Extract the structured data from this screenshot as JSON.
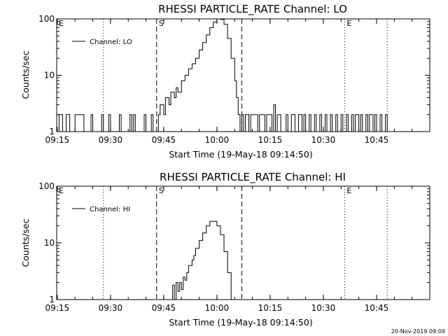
{
  "chart_data": [
    {
      "type": "line",
      "title": "RHESSI PARTICLE_RATE Channel: LO",
      "xlabel": "Start Time (19-May-18 09:14:50)",
      "ylabel": "Counts/sec",
      "y_scale": "log",
      "ylim": [
        1,
        100
      ],
      "y_ticks": [
        "1",
        "10",
        "100"
      ],
      "xlim": [
        "09:14:50",
        "11:00:00"
      ],
      "x_ticks": [
        "09:15",
        "09:30",
        "09:45",
        "10:00",
        "10:15",
        "10:30",
        "10:45"
      ],
      "legend": {
        "placement": "top-left",
        "entries": [
          "Channel: LO"
        ]
      },
      "markers": [
        {
          "time": "09:14:50",
          "label": "E",
          "style": "dotted"
        },
        {
          "time": "09:28",
          "label": "",
          "style": "dotted"
        },
        {
          "time": "09:43",
          "label": "S",
          "style": "dashed"
        },
        {
          "time": "10:07",
          "label": "",
          "style": "dashed"
        },
        {
          "time": "10:36",
          "label": "E",
          "style": "dotted"
        },
        {
          "time": "10:48",
          "label": "",
          "style": "dotted"
        }
      ],
      "series": [
        {
          "name": "Channel: LO",
          "points": [
            [
              "09:14:50",
              1
            ],
            [
              "09:15:30",
              2
            ],
            [
              "09:16:30",
              1
            ],
            [
              "09:17:00",
              1
            ],
            [
              "09:17:30",
              2
            ],
            [
              "09:18:30",
              1
            ],
            [
              "09:19:30",
              1
            ],
            [
              "09:20:00",
              2
            ],
            [
              "09:22:00",
              2
            ],
            [
              "09:22:30",
              1
            ],
            [
              "09:24:00",
              1
            ],
            [
              "09:24:30",
              2
            ],
            [
              "09:25:00",
              1
            ],
            [
              "09:27:00",
              1
            ],
            [
              "09:27:30",
              2
            ],
            [
              "09:28:00",
              1
            ],
            [
              "09:29:00",
              1
            ],
            [
              "09:29:30",
              2
            ],
            [
              "09:30:00",
              1
            ],
            [
              "09:32:00",
              1
            ],
            [
              "09:32:30",
              2
            ],
            [
              "09:33:00",
              1
            ],
            [
              "09:35:00",
              1
            ],
            [
              "09:35:30",
              2
            ],
            [
              "09:36:00",
              1
            ],
            [
              "09:36:30",
              2
            ],
            [
              "09:37:00",
              1
            ],
            [
              "09:39:00",
              1
            ],
            [
              "09:39:30",
              2
            ],
            [
              "09:40:00",
              1
            ],
            [
              "09:41:00",
              1
            ],
            [
              "09:41:30",
              2
            ],
            [
              "09:42:00",
              1
            ],
            [
              "09:43:00",
              1
            ],
            [
              "09:43:30",
              2
            ],
            [
              "09:44:00",
              3
            ],
            [
              "09:44:30",
              3
            ],
            [
              "09:45:00",
              2
            ],
            [
              "09:45:30",
              4
            ],
            [
              "09:46:00",
              4
            ],
            [
              "09:46:30",
              3
            ],
            [
              "09:47:00",
              5
            ],
            [
              "09:48:00",
              4
            ],
            [
              "09:48:30",
              6
            ],
            [
              "09:49:00",
              5
            ],
            [
              "09:50:00",
              8
            ],
            [
              "09:51:00",
              10
            ],
            [
              "09:52:00",
              13
            ],
            [
              "09:53:00",
              16
            ],
            [
              "09:54:00",
              20
            ],
            [
              "09:55:00",
              28
            ],
            [
              "09:56:00",
              38
            ],
            [
              "09:57:00",
              52
            ],
            [
              "09:58:00",
              70
            ],
            [
              "09:59:00",
              88
            ],
            [
              "10:00:00",
              100
            ],
            [
              "10:01:00",
              98
            ],
            [
              "10:02:00",
              80
            ],
            [
              "10:03:00",
              45
            ],
            [
              "10:04:00",
              20
            ],
            [
              "10:05:00",
              8
            ],
            [
              "10:05:30",
              4
            ],
            [
              "10:06:00",
              2
            ],
            [
              "10:06:30",
              1
            ],
            [
              "10:07:00",
              2
            ],
            [
              "10:07:30",
              1
            ],
            [
              "10:08:00",
              2
            ],
            [
              "10:09:00",
              1
            ],
            [
              "10:09:30",
              2
            ],
            [
              "10:11:00",
              2
            ],
            [
              "10:11:30",
              1
            ],
            [
              "10:12:00",
              2
            ],
            [
              "10:13:00",
              2
            ],
            [
              "10:13:30",
              1
            ],
            [
              "10:14:00",
              2
            ],
            [
              "10:15:00",
              2
            ],
            [
              "10:15:30",
              1
            ],
            [
              "10:16:00",
              3
            ],
            [
              "10:16:30",
              1
            ],
            [
              "10:17:00",
              2
            ],
            [
              "10:18:00",
              1
            ],
            [
              "10:19:00",
              1
            ],
            [
              "10:19:30",
              2
            ],
            [
              "10:20:00",
              1
            ],
            [
              "10:21:00",
              2
            ],
            [
              "10:22:00",
              1
            ],
            [
              "10:23:00",
              2
            ],
            [
              "10:24:00",
              1
            ],
            [
              "10:24:30",
              2
            ],
            [
              "10:25:00",
              1
            ],
            [
              "10:26:00",
              2
            ],
            [
              "10:26:30",
              1
            ],
            [
              "10:27:00",
              1
            ],
            [
              "10:27:30",
              2
            ],
            [
              "10:28:00",
              1
            ],
            [
              "10:29:00",
              2
            ],
            [
              "10:29:30",
              1
            ],
            [
              "10:30:30",
              2
            ],
            [
              "10:31:00",
              1
            ],
            [
              "10:32:00",
              2
            ],
            [
              "10:32:30",
              1
            ],
            [
              "10:33:30",
              2
            ],
            [
              "10:34:00",
              1
            ],
            [
              "10:35:00",
              2
            ],
            [
              "10:35:30",
              1
            ],
            [
              "10:36:30",
              2
            ],
            [
              "10:37:00",
              1
            ],
            [
              "10:38:00",
              2
            ],
            [
              "10:38:30",
              1
            ],
            [
              "10:39:00",
              2
            ],
            [
              "10:40:00",
              1
            ],
            [
              "10:40:30",
              2
            ],
            [
              "10:41:00",
              1
            ],
            [
              "10:42:00",
              2
            ],
            [
              "10:42:30",
              1
            ],
            [
              "10:43:00",
              2
            ],
            [
              "10:44:00",
              1
            ],
            [
              "10:44:30",
              2
            ],
            [
              "10:45:00",
              1
            ],
            [
              "10:46:00",
              2
            ],
            [
              "10:46:30",
              1
            ],
            [
              "10:47:30",
              2
            ],
            [
              "10:48:00",
              1
            ]
          ]
        }
      ]
    },
    {
      "type": "line",
      "title": "RHESSI PARTICLE_RATE Channel: HI",
      "xlabel": "Start Time (19-May-18 09:14:50)",
      "ylabel": "Counts/sec",
      "y_scale": "log",
      "ylim": [
        1,
        100
      ],
      "y_ticks": [
        "1",
        "10",
        "100"
      ],
      "xlim": [
        "09:14:50",
        "11:00:00"
      ],
      "x_ticks": [
        "09:15",
        "09:30",
        "09:45",
        "10:00",
        "10:15",
        "10:30",
        "10:45"
      ],
      "legend": {
        "placement": "top-left",
        "entries": [
          "Channel: HI"
        ]
      },
      "markers": [
        {
          "time": "09:14:50",
          "label": "E",
          "style": "dotted"
        },
        {
          "time": "09:28",
          "label": "",
          "style": "dotted"
        },
        {
          "time": "09:43",
          "label": "S",
          "style": "dashed"
        },
        {
          "time": "10:07",
          "label": "",
          "style": "dashed"
        },
        {
          "time": "10:36",
          "label": "E",
          "style": "dotted"
        },
        {
          "time": "10:48",
          "label": "",
          "style": "dotted"
        }
      ],
      "series": [
        {
          "name": "Channel: HI",
          "points": [
            [
              "09:47:00",
              1
            ],
            [
              "09:47:30",
              1.8
            ],
            [
              "09:48:00",
              1
            ],
            [
              "09:48:30",
              2
            ],
            [
              "09:49:00",
              1.4
            ],
            [
              "09:49:30",
              2
            ],
            [
              "09:50:00",
              1.5
            ],
            [
              "09:50:30",
              2.5
            ],
            [
              "09:51:00",
              2.2
            ],
            [
              "09:51:30",
              3
            ],
            [
              "09:52:00",
              4
            ],
            [
              "09:53:00",
              5
            ],
            [
              "09:53:30",
              6
            ],
            [
              "09:54:00",
              8
            ],
            [
              "09:55:00",
              11
            ],
            [
              "09:56:00",
              15
            ],
            [
              "09:57:00",
              20
            ],
            [
              "09:58:00",
              24
            ],
            [
              "09:59:00",
              24
            ],
            [
              "10:00:00",
              20
            ],
            [
              "10:01:00",
              14
            ],
            [
              "10:02:00",
              7
            ],
            [
              "10:03:00",
              3
            ],
            [
              "10:04:00",
              1
            ]
          ]
        }
      ]
    }
  ],
  "footer": {
    "timestamp": "20-Nov-2019 09:09"
  }
}
